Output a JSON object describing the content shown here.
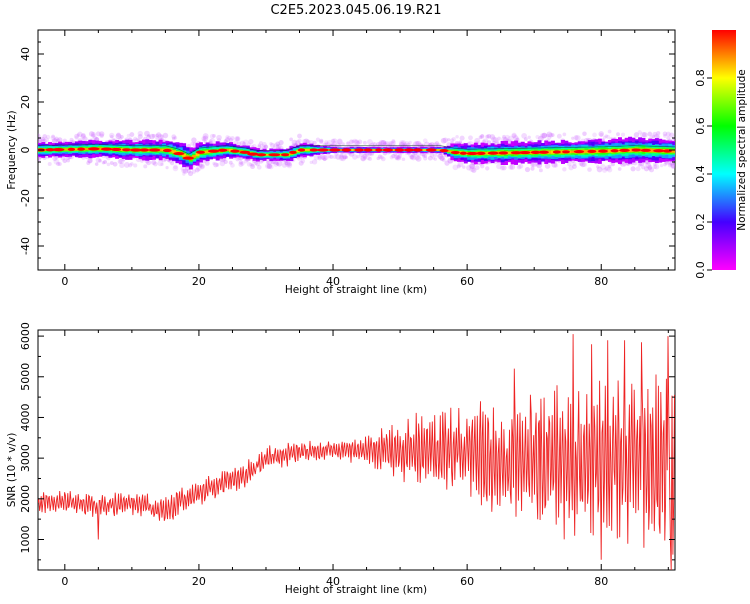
{
  "title": "C2E5.2023.045.06.19.R21",
  "chart_data": [
    {
      "type": "heatmap",
      "xlabel": "Height of straight line (km)",
      "ylabel": "Frequency (Hz)",
      "xlim": [
        -4,
        91
      ],
      "ylim": [
        -50,
        50
      ],
      "x_ticks": [
        0,
        20,
        40,
        60,
        80
      ],
      "y_ticks": [
        -40,
        -20,
        0,
        20,
        40
      ],
      "center_frequency_track": {
        "x": [
          -4,
          5,
          10,
          15,
          17,
          18.5,
          20,
          24,
          27,
          28.5,
          33,
          35,
          40,
          48,
          56,
          58,
          60,
          70,
          80,
          85,
          91
        ],
        "y": [
          0,
          0.5,
          0,
          0,
          -1.5,
          -3.5,
          -1,
          0,
          -1,
          -2,
          -2,
          0,
          0,
          0,
          0,
          -1,
          -1.5,
          -1,
          -0.5,
          0,
          -0.5
        ]
      },
      "band_halfwidth_hz": {
        "x": [
          -4,
          10,
          18,
          30,
          35,
          40,
          56,
          58,
          65,
          75,
          85,
          91
        ],
        "y": [
          2,
          2.5,
          3,
          1.5,
          2,
          0.8,
          0.8,
          2.5,
          3,
          3,
          3.5,
          3
        ]
      },
      "colorbar": {
        "label": "Normalized spectral amplitude",
        "range": [
          0,
          1
        ],
        "ticks": [
          "0.0",
          "0.2",
          "0.4",
          "0.6",
          "0.8"
        ],
        "colormap": [
          "#ff00ff",
          "#4400ff",
          "#00ffff",
          "#00ff00",
          "#ffff00",
          "#ff0000"
        ]
      }
    },
    {
      "type": "line",
      "xlabel": "Height of straight line (km)",
      "ylabel": "SNR (10 * v/v)",
      "xlim": [
        -4,
        91
      ],
      "ylim": [
        250,
        6150
      ],
      "x_ticks": [
        0,
        20,
        40,
        60,
        80
      ],
      "y_ticks": [
        1000,
        2000,
        3000,
        4000,
        5000,
        6000
      ],
      "line_color": "#ee2222",
      "trend": {
        "x": [
          -4,
          0,
          5,
          10,
          15,
          18,
          22,
          27,
          30,
          35,
          40,
          45,
          50,
          55,
          60,
          65,
          70,
          75,
          80,
          85,
          91
        ],
        "y": [
          1900,
          1950,
          1800,
          1900,
          1700,
          2000,
          2300,
          2600,
          3000,
          3150,
          3200,
          3200,
          3150,
          3200,
          3200,
          3000,
          2950,
          2900,
          2900,
          2800,
          2800
        ]
      },
      "amplitude": {
        "x": [
          -4,
          10,
          20,
          28,
          40,
          46,
          50,
          60,
          70,
          75,
          80,
          85,
          91
        ],
        "y": [
          250,
          300,
          350,
          300,
          250,
          400,
          800,
          1200,
          1500,
          2000,
          2000,
          2100,
          2300
        ]
      },
      "notable_peaks": [
        {
          "x": 5,
          "y": 1000
        },
        {
          "x": 62,
          "y": 4400
        },
        {
          "x": 67,
          "y": 5200
        },
        {
          "x": 75.8,
          "y": 6050
        },
        {
          "x": 78.5,
          "y": 5800
        },
        {
          "x": 80,
          "y": 500
        },
        {
          "x": 81,
          "y": 5900
        },
        {
          "x": 83.5,
          "y": 5900
        },
        {
          "x": 86,
          "y": 5850
        },
        {
          "x": 90,
          "y": 6000
        },
        {
          "x": 90.5,
          "y": 250
        }
      ]
    }
  ]
}
